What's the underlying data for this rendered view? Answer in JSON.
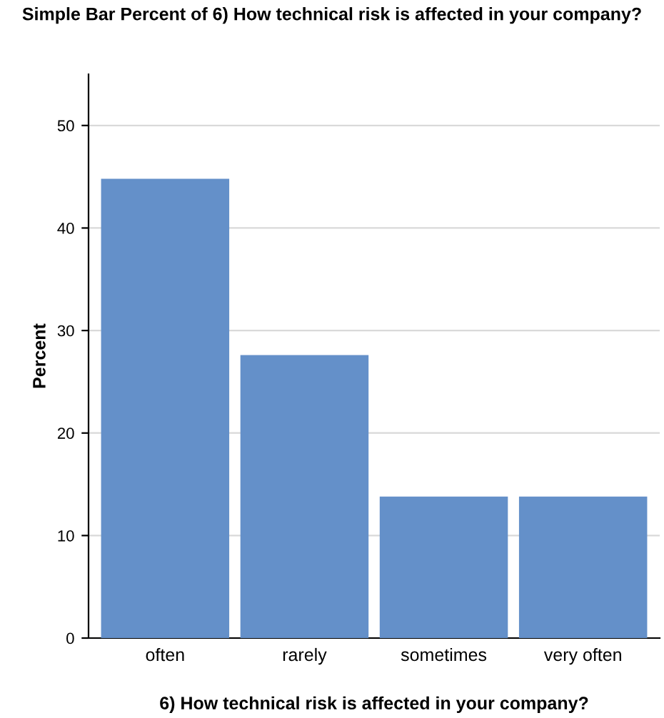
{
  "chart_data": {
    "type": "bar",
    "title": "Simple Bar Percent of 6) How technical risk is affected in your company?",
    "xlabel": "6) How technical risk is affected in your company?",
    "ylabel": "Percent",
    "categories": [
      "often",
      "rarely",
      "sometimes",
      "very often"
    ],
    "values": [
      44.8,
      27.6,
      13.8,
      13.8
    ],
    "color": "#6490c9",
    "ylim": [
      0,
      55
    ],
    "yticks": [
      0,
      10,
      20,
      30,
      40,
      50
    ],
    "grid": "y"
  }
}
